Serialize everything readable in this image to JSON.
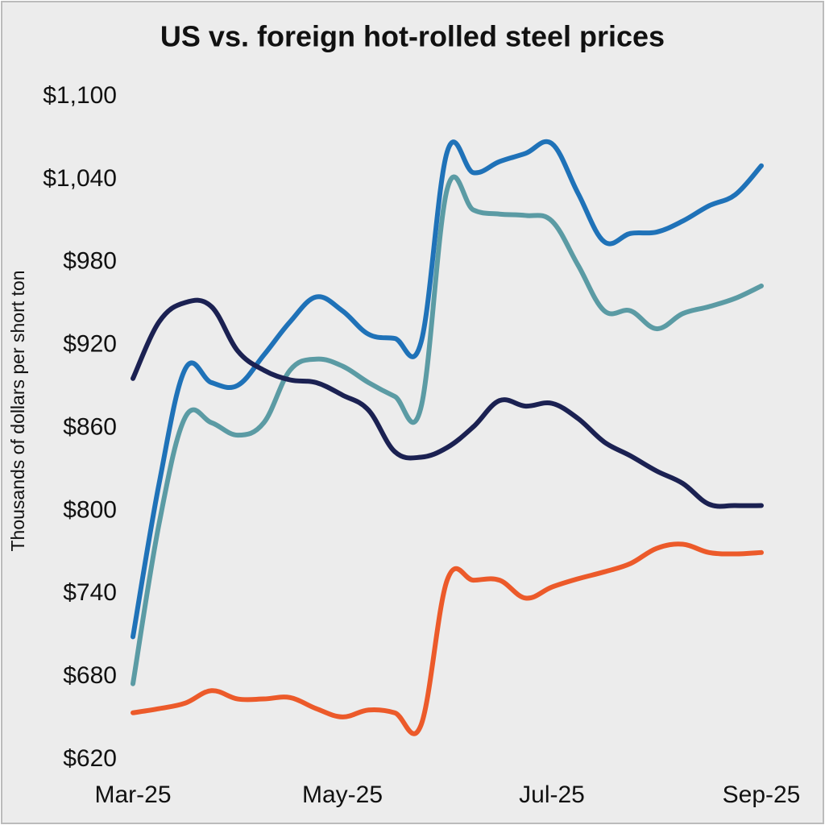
{
  "chart_data": {
    "type": "line",
    "title": "US vs. foreign hot-rolled steel prices",
    "y_label": "Thousands of dollars per short ton",
    "categories": [
      "Mar-25",
      null,
      null,
      null,
      null,
      null,
      null,
      null,
      "May-25",
      null,
      null,
      null,
      null,
      null,
      null,
      null,
      "Jul-25",
      null,
      null,
      null,
      null,
      null,
      null,
      null,
      "Sep-25"
    ],
    "series": [
      {
        "color": "#1f72b8",
        "values": [
          709,
          820,
          903,
          893,
          891,
          913,
          937,
          955,
          945,
          928,
          925,
          922,
          1060,
          1045,
          1053,
          1059,
          1066,
          1030,
          995,
          1001,
          1002,
          1010,
          1021,
          1029,
          1050
        ]
      },
      {
        "color": "#5b9ba4",
        "values": [
          675,
          791,
          868,
          864,
          855,
          864,
          902,
          910,
          905,
          893,
          883,
          875,
          1033,
          1018,
          1015,
          1014,
          1010,
          978,
          945,
          945,
          932,
          943,
          948,
          954,
          963
        ]
      },
      {
        "color": "#1b2152",
        "values": [
          896,
          937,
          951,
          948,
          916,
          902,
          895,
          893,
          884,
          873,
          843,
          839,
          846,
          861,
          880,
          876,
          878,
          867,
          850,
          840,
          829,
          820,
          805,
          804,
          804
        ]
      },
      {
        "color": "#ec5a2a",
        "values": [
          654,
          657,
          661,
          670,
          664,
          664,
          665,
          657,
          651,
          656,
          654,
          645,
          750,
          750,
          750,
          737,
          745,
          751,
          756,
          762,
          773,
          776,
          770,
          769,
          770
        ]
      }
    ],
    "ylim": [
      620,
      1100
    ],
    "yticks": [
      {
        "value": 620,
        "label": "$620"
      },
      {
        "value": 680,
        "label": "$680"
      },
      {
        "value": 740,
        "label": "$740"
      },
      {
        "value": 800,
        "label": "$800"
      },
      {
        "value": 860,
        "label": "$860"
      },
      {
        "value": 920,
        "label": "$920"
      },
      {
        "value": 980,
        "label": "$980"
      },
      {
        "value": 1040,
        "label": "$1,040"
      },
      {
        "value": 1100,
        "label": "$1,100"
      }
    ],
    "grid": false
  }
}
